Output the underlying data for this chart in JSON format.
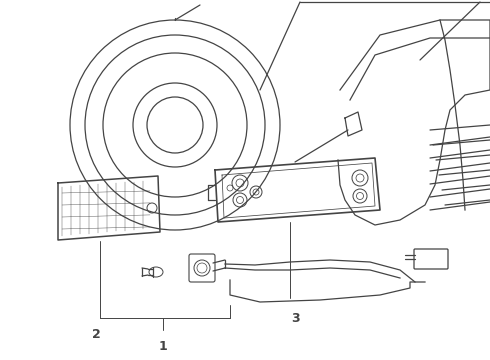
{
  "bg_color": "#ffffff",
  "lc": "#444444",
  "lw": 0.9,
  "figsize": [
    4.9,
    3.6
  ],
  "dpi": 100,
  "label_1": "1",
  "label_2": "2",
  "label_3": "3"
}
